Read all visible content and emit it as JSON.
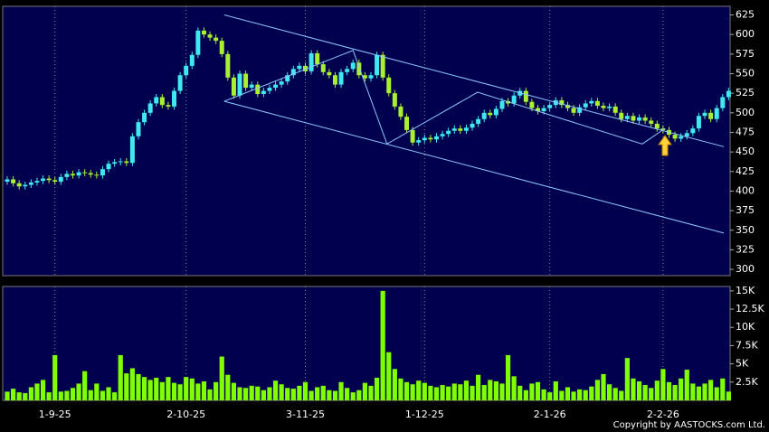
{
  "chart_data": [
    {
      "type": "candlestick",
      "up_color": "#40e8f0",
      "down_color": "#a8f030",
      "ylim": [
        292,
        636
      ],
      "yticks": [
        300,
        325,
        350,
        375,
        400,
        425,
        450,
        475,
        500,
        525,
        550,
        575,
        600,
        625
      ],
      "xticks": [
        {
          "value": 8,
          "label": "1-9-25"
        },
        {
          "value": 30,
          "label": "2-10-25"
        },
        {
          "value": 50,
          "label": "3-11-25"
        },
        {
          "value": 70,
          "label": "1-12-25"
        },
        {
          "value": 91,
          "label": "2-1-26"
        },
        {
          "value": 110,
          "label": "2-2-26"
        }
      ],
      "open": [
        412,
        415,
        410,
        406,
        408,
        411,
        413,
        416,
        414,
        412,
        418,
        422,
        420,
        424,
        423,
        421,
        420,
        428,
        435,
        437,
        438,
        436,
        470,
        488,
        500,
        512,
        520,
        510,
        508,
        528,
        548,
        560,
        574,
        605,
        600,
        596,
        592,
        575,
        545,
        522,
        550,
        532,
        536,
        524,
        528,
        532,
        536,
        540,
        548,
        556,
        560,
        553,
        576,
        562,
        552,
        548,
        536,
        552,
        556,
        564,
        548,
        544,
        548,
        574,
        545,
        525,
        508,
        495,
        478,
        462,
        465,
        468,
        466,
        470,
        473,
        477,
        480,
        477,
        481,
        486,
        492,
        500,
        497,
        505,
        515,
        512,
        522,
        528,
        514,
        506,
        502,
        506,
        510,
        516,
        510,
        506,
        500,
        507,
        512,
        515,
        509,
        506,
        508,
        500,
        492,
        496,
        490,
        494,
        490,
        486,
        480,
        478,
        472,
        467,
        470,
        474,
        480,
        496,
        500,
        492,
        506,
        520
      ],
      "high": [
        419,
        419,
        414,
        412,
        415,
        417,
        420,
        420,
        418,
        422,
        426,
        426,
        428,
        428,
        427,
        425,
        432,
        439,
        441,
        442,
        442,
        474,
        492,
        504,
        516,
        524,
        524,
        514,
        532,
        552,
        564,
        578,
        609,
        609,
        604,
        600,
        596,
        579,
        549,
        554,
        554,
        540,
        540,
        532,
        536,
        540,
        544,
        552,
        560,
        564,
        564,
        580,
        580,
        566,
        556,
        552,
        556,
        560,
        568,
        568,
        552,
        552,
        578,
        578,
        549,
        529,
        512,
        499,
        482,
        469,
        472,
        472,
        474,
        477,
        481,
        484,
        484,
        485,
        490,
        496,
        504,
        504,
        509,
        519,
        519,
        526,
        532,
        532,
        518,
        510,
        510,
        514,
        520,
        520,
        514,
        510,
        511,
        516,
        519,
        519,
        513,
        512,
        512,
        504,
        500,
        500,
        498,
        498,
        494,
        490,
        484,
        482,
        476,
        474,
        478,
        484,
        500,
        504,
        504,
        510,
        524,
        532
      ],
      "low": [
        408,
        406,
        402,
        402,
        404,
        407,
        409,
        410,
        408,
        408,
        414,
        416,
        416,
        419,
        417,
        416,
        416,
        424,
        431,
        433,
        432,
        432,
        466,
        484,
        496,
        508,
        506,
        504,
        504,
        524,
        544,
        556,
        570,
        596,
        592,
        588,
        571,
        541,
        518,
        518,
        528,
        528,
        520,
        520,
        524,
        528,
        532,
        536,
        544,
        552,
        549,
        549,
        558,
        548,
        544,
        532,
        532,
        548,
        552,
        544,
        540,
        540,
        544,
        541,
        521,
        504,
        491,
        474,
        458,
        458,
        461,
        462,
        462,
        466,
        469,
        473,
        473,
        473,
        477,
        482,
        488,
        493,
        493,
        501,
        508,
        508,
        518,
        510,
        502,
        498,
        498,
        502,
        506,
        506,
        502,
        496,
        496,
        503,
        508,
        505,
        502,
        502,
        496,
        488,
        488,
        486,
        486,
        486,
        482,
        476,
        474,
        468,
        463,
        463,
        466,
        470,
        476,
        492,
        488,
        488,
        502,
        516
      ],
      "close": [
        415,
        410,
        406,
        408,
        411,
        413,
        416,
        414,
        412,
        418,
        422,
        420,
        424,
        423,
        421,
        420,
        428,
        435,
        437,
        438,
        436,
        470,
        488,
        500,
        512,
        520,
        510,
        508,
        528,
        548,
        560,
        574,
        605,
        600,
        596,
        592,
        575,
        545,
        522,
        550,
        532,
        536,
        524,
        528,
        532,
        536,
        540,
        548,
        556,
        560,
        553,
        576,
        562,
        552,
        548,
        536,
        552,
        556,
        564,
        548,
        544,
        548,
        574,
        545,
        525,
        508,
        495,
        478,
        462,
        465,
        468,
        466,
        470,
        473,
        477,
        480,
        477,
        481,
        486,
        492,
        500,
        497,
        505,
        515,
        512,
        522,
        528,
        514,
        506,
        502,
        506,
        510,
        516,
        510,
        506,
        500,
        507,
        512,
        515,
        509,
        506,
        508,
        500,
        492,
        496,
        490,
        494,
        490,
        486,
        480,
        478,
        472,
        467,
        470,
        474,
        480,
        496,
        500,
        492,
        506,
        520,
        528
      ],
      "trendlines": [
        [
          [
            36.4,
            625
          ],
          [
            120.2,
            456.7
          ]
        ],
        [
          [
            36.4,
            514.7
          ],
          [
            120.2,
            346.4
          ]
        ],
        [
          [
            36.4,
            514.7
          ],
          [
            58.0,
            579.7
          ],
          [
            63.7,
            460.2
          ],
          [
            78.9,
            526.3
          ],
          [
            106.5,
            460.2
          ],
          [
            110.3,
            479.9
          ]
        ]
      ],
      "trendline_color": "#8cc8ff"
    },
    {
      "type": "bar",
      "color": "#80ff00",
      "ylim": [
        0,
        15600
      ],
      "yticks": [
        {
          "value": 2500,
          "label": "2.5K"
        },
        {
          "value": 5000,
          "label": "5K"
        },
        {
          "value": 7500,
          "label": "7.5K"
        },
        {
          "value": 10000,
          "label": "10K"
        },
        {
          "value": 12500,
          "label": "12.5K"
        },
        {
          "value": 15000,
          "label": "15K"
        }
      ],
      "values": [
        1200,
        1600,
        1100,
        1000,
        1800,
        2300,
        2800,
        1100,
        6200,
        1200,
        1300,
        1700,
        2300,
        4000,
        1400,
        2300,
        1300,
        1800,
        1100,
        6200,
        3700,
        4400,
        3600,
        3200,
        2800,
        3100,
        2500,
        3200,
        2400,
        2200,
        3200,
        3000,
        2300,
        2600,
        1500,
        2500,
        6000,
        3500,
        2400,
        1800,
        1700,
        2000,
        1900,
        1400,
        1800,
        2700,
        2200,
        1700,
        1600,
        2000,
        2500,
        1300,
        1800,
        2000,
        1400,
        1300,
        2500,
        1700,
        1100,
        1400,
        2400,
        2000,
        3100,
        15000,
        6600,
        4300,
        3000,
        2500,
        2200,
        2700,
        2400,
        2000,
        1800,
        2100,
        1900,
        2300,
        2200,
        2700,
        2000,
        3500,
        2100,
        2800,
        2600,
        2300,
        6200,
        3300,
        2000,
        1400,
        2300,
        2500,
        1500,
        1100,
        2600,
        1300,
        1800,
        1200,
        1500,
        1400,
        1900,
        2800,
        3600,
        2200,
        1700,
        1300,
        5800,
        3000,
        2600,
        2100,
        1700,
        2700,
        4300,
        2500,
        2100,
        3000,
        4200,
        2300,
        1900,
        2300,
        2800,
        1800,
        3000,
        1200
      ],
      "credit": "Copyright by AASTOCKS.com Ltd."
    }
  ]
}
